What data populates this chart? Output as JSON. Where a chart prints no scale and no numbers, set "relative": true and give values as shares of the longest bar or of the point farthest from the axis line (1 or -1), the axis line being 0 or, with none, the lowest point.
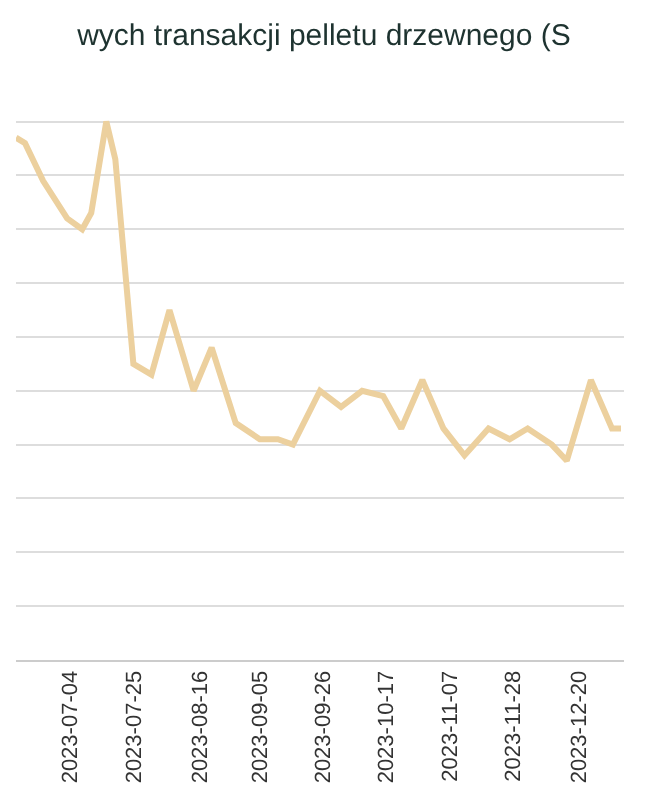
{
  "chart_data": {
    "type": "line",
    "title": "wych transakcji pelletu drzewnego (S",
    "relative": true,
    "grid": "y",
    "legend": false,
    "marker": "none",
    "line_style": "solid",
    "x": [
      "2023-06-16",
      "2023-06-19",
      "2023-06-25",
      "2023-07-03",
      "2023-07-08",
      "2023-07-11",
      "2023-07-16",
      "2023-07-19",
      "2023-07-25",
      "2023-07-31",
      "2023-08-06",
      "2023-08-14",
      "2023-08-20",
      "2023-08-28",
      "2023-09-05",
      "2023-09-11",
      "2023-09-16",
      "2023-09-25",
      "2023-10-02",
      "2023-10-09",
      "2023-10-16",
      "2023-10-22",
      "2023-10-29",
      "2023-11-05",
      "2023-11-12",
      "2023-11-20",
      "2023-11-27",
      "2023-12-03",
      "2023-12-11",
      "2023-12-16",
      "2023-12-24",
      "2023-12-31",
      "2024-01-03"
    ],
    "xlim": [
      "2023-06-16",
      "2024-01-04"
    ],
    "xticks": [
      {
        "value": "2023-07-04",
        "label": "2023-07-04"
      },
      {
        "value": "2023-07-25",
        "label": "2023-07-25"
      },
      {
        "value": "2023-08-16",
        "label": "2023-08-16"
      },
      {
        "value": "2023-09-05",
        "label": "2023-09-05"
      },
      {
        "value": "2023-09-26",
        "label": "2023-09-26"
      },
      {
        "value": "2023-10-17",
        "label": "2023-10-17"
      },
      {
        "value": "2023-11-07",
        "label": "2023-11-07"
      },
      {
        "value": "2023-11-28",
        "label": "2023-11-28"
      },
      {
        "value": "2023-12-20",
        "label": "2023-12-20"
      }
    ],
    "series": [
      {
        "color": "#ecd09e",
        "values": [
          0.97,
          0.96,
          0.89,
          0.82,
          0.8,
          0.83,
          1.0,
          0.93,
          0.55,
          0.53,
          0.65,
          0.5,
          0.58,
          0.44,
          0.41,
          0.41,
          0.4,
          0.5,
          0.47,
          0.5,
          0.49,
          0.43,
          0.52,
          0.43,
          0.38,
          0.43,
          0.41,
          0.43,
          0.4,
          0.37,
          0.52,
          0.43,
          0.43
        ]
      }
    ]
  }
}
